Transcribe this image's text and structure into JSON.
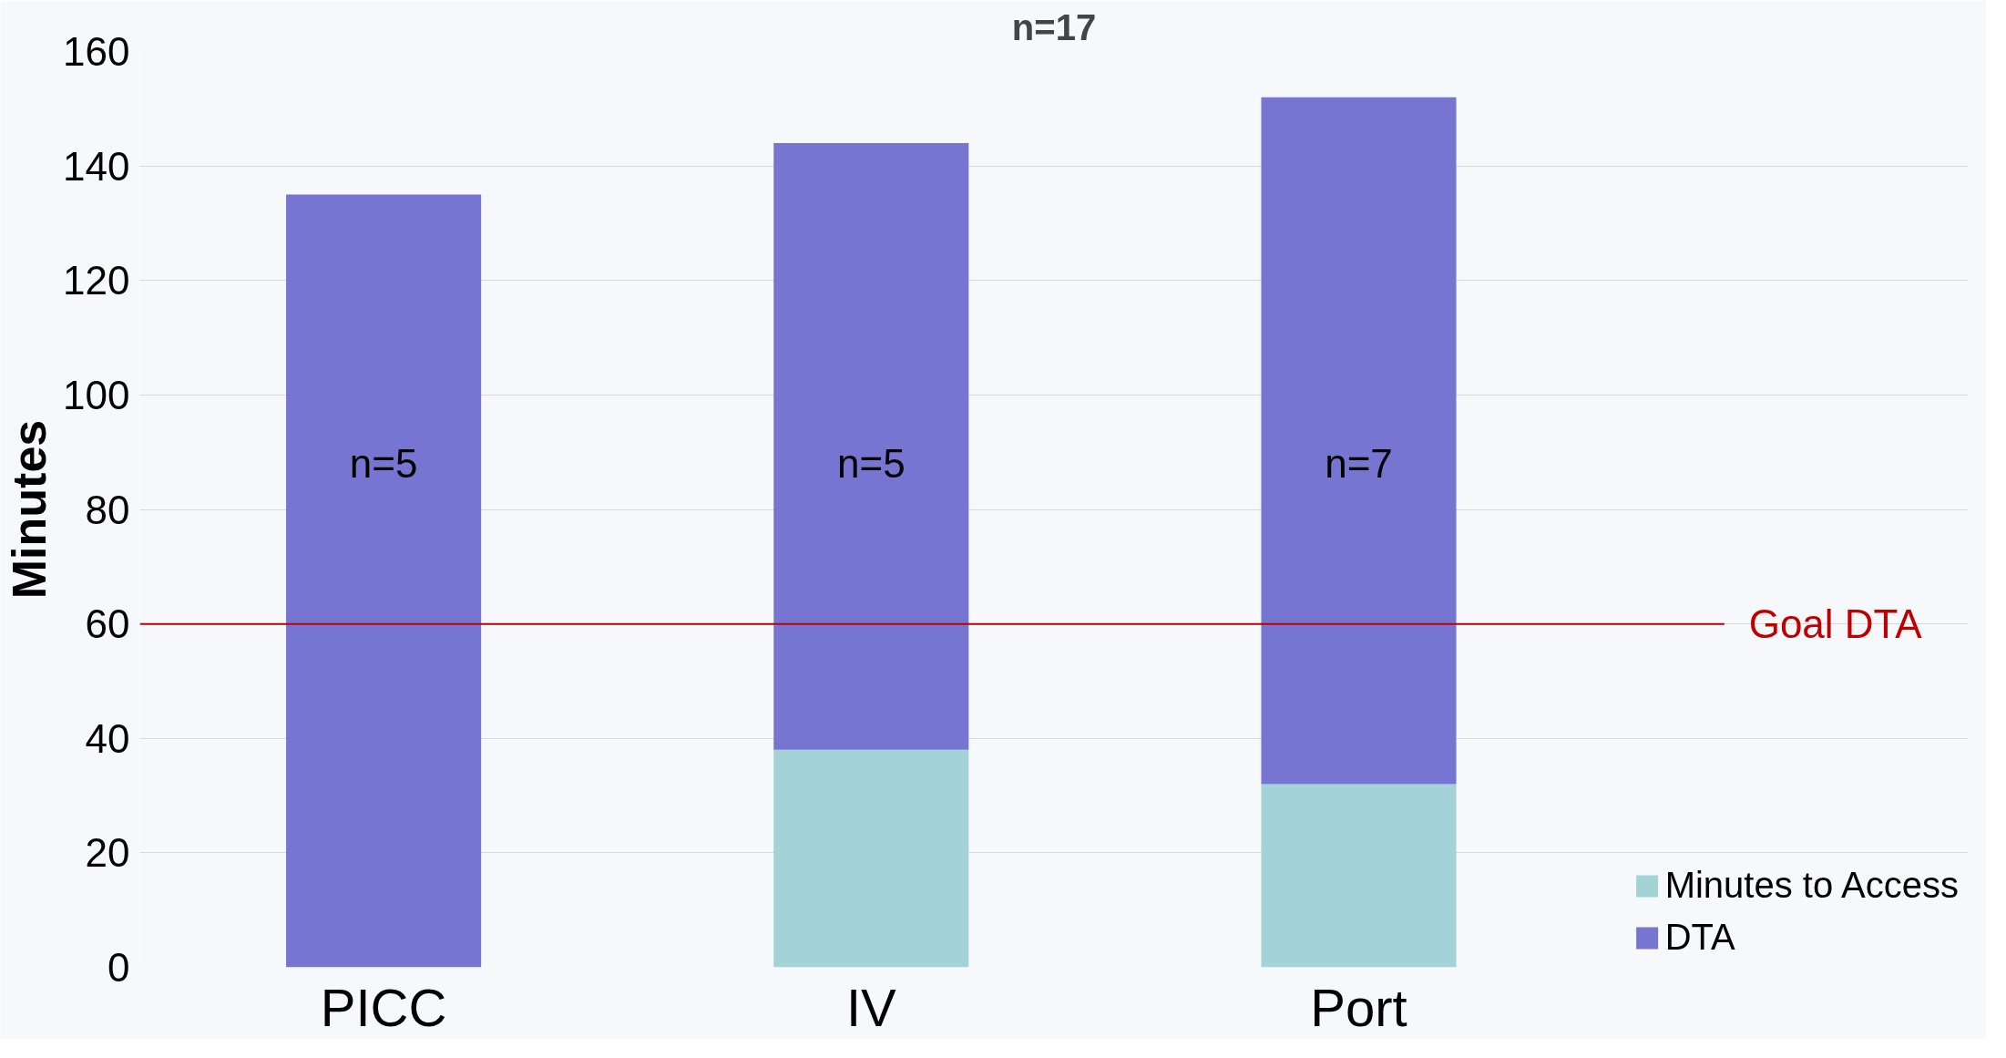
{
  "chart_data": {
    "type": "bar",
    "title": "n=17",
    "ylabel": "Minutes",
    "categories": [
      "PICC",
      "IV",
      "Port"
    ],
    "stacked": true,
    "series": [
      {
        "name": "Minutes to Access",
        "color": "#a3d3d6",
        "values": [
          0,
          38,
          32
        ]
      },
      {
        "name": "DTA",
        "color": "#7675d1",
        "values": [
          135,
          106,
          120
        ]
      }
    ],
    "ylim": [
      0,
      160
    ],
    "yticks": [
      0,
      20,
      40,
      60,
      80,
      100,
      120,
      140,
      160
    ],
    "grid": "y",
    "legend": "bottom right",
    "ref_lines": [
      {
        "axis": "y",
        "value": 60,
        "label": "Goal DTA",
        "color": "#c00000"
      }
    ],
    "annotations": [
      "n=5",
      "n=5",
      "n=7"
    ]
  }
}
